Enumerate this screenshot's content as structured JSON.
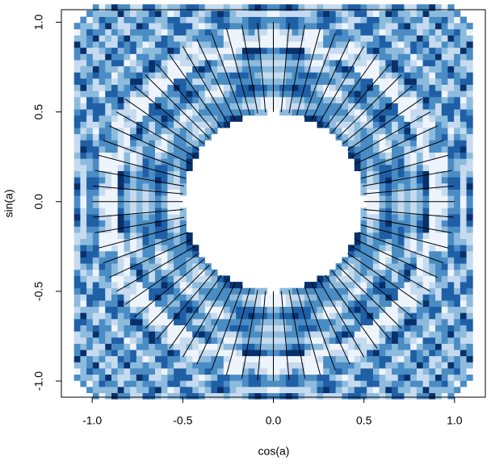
{
  "chart_data": {
    "type": "segments",
    "xlabel": "cos(a)",
    "ylabel": "sin(a)",
    "xlim": [
      -1.17,
      1.17
    ],
    "ylim": [
      -1.09,
      1.07
    ],
    "xticks": [
      {
        "value": -1,
        "label": "-1.0"
      },
      {
        "value": -0.5,
        "label": "-0.5"
      },
      {
        "value": 0,
        "label": "0.0"
      },
      {
        "value": 0.5,
        "label": "0.5"
      },
      {
        "value": 1,
        "label": "1.0"
      }
    ],
    "yticks": [
      {
        "value": -1,
        "label": "-1.0"
      },
      {
        "value": -0.5,
        "label": "-0.5"
      },
      {
        "value": 0,
        "label": "0.0"
      },
      {
        "value": 0.5,
        "label": "0.5"
      },
      {
        "value": 1,
        "label": "1.0"
      }
    ],
    "color": "#000000",
    "r0": 0.5,
    "r1": 1,
    "angles": [
      0,
      5,
      10,
      15,
      20,
      25,
      30,
      35,
      40,
      45,
      50,
      55,
      60,
      65,
      70,
      75,
      80,
      85,
      90,
      95,
      100,
      105,
      110,
      115,
      120,
      125,
      130,
      135,
      140,
      145,
      150,
      155,
      160,
      165,
      170,
      175,
      180,
      185,
      190,
      195,
      200,
      205,
      210,
      215,
      220,
      225,
      230,
      235,
      240,
      245,
      250,
      255,
      260,
      265,
      270,
      275,
      280,
      285,
      290,
      295,
      300,
      305,
      310,
      315,
      320,
      325,
      330,
      335,
      340,
      345,
      350,
      355
    ]
  }
}
